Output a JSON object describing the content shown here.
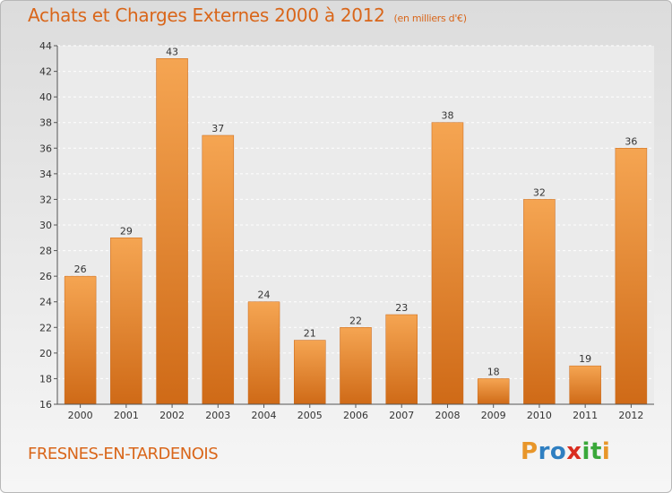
{
  "title": "Achats et Charges Externes 2000 à 2012",
  "subtitle": "(en milliers d'€)",
  "commune": "FRESNES-EN-TARDENOIS",
  "logo": {
    "text": "Proxiti",
    "letters": [
      "P",
      "r",
      "o",
      "x",
      "i",
      "t",
      "i"
    ],
    "colors": [
      "#e8962a",
      "#2f7fc1",
      "#2f7fc1",
      "#d92d20",
      "#3aa83a",
      "#3aa83a",
      "#e8962a"
    ]
  },
  "chart_data": {
    "type": "bar",
    "categories": [
      "2000",
      "2001",
      "2002",
      "2003",
      "2004",
      "2005",
      "2006",
      "2007",
      "2008",
      "2009",
      "2010",
      "2011",
      "2012"
    ],
    "values": [
      26,
      29,
      43,
      37,
      24,
      21,
      22,
      23,
      38,
      18,
      32,
      19,
      36
    ],
    "ylim": [
      16,
      44
    ],
    "yticks": [
      16,
      18,
      20,
      22,
      24,
      26,
      28,
      30,
      32,
      34,
      36,
      38,
      40,
      42,
      44
    ],
    "grid": true,
    "bar_color": "#f0953a",
    "bar_color_dark": "#d36f1a"
  }
}
